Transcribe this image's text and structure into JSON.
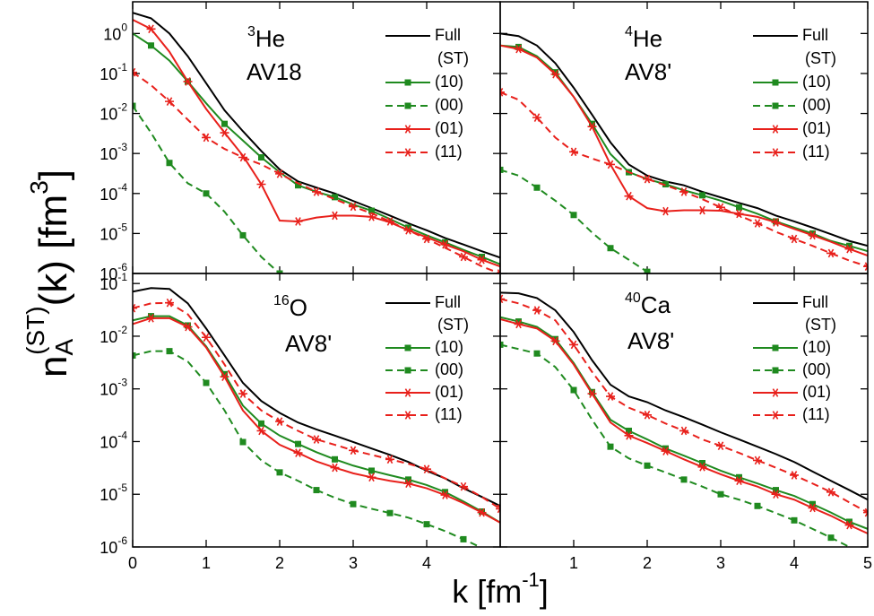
{
  "y_label": {
    "base": "n",
    "sub": "A",
    "sup": "(ST)",
    "rest": "(k) [fm",
    "power": "3",
    "end": "]"
  },
  "x_label": {
    "base": "k [fm",
    "power": "-1",
    "end": "]"
  },
  "chart_data": [
    {
      "type": "line",
      "annotation": {
        "mass": "3",
        "symbol": "He",
        "potential": "AV18"
      },
      "legend_title": "(ST)",
      "log_y": true,
      "x": [
        0,
        0.25,
        0.5,
        0.75,
        1,
        1.25,
        1.5,
        1.75,
        2,
        2.25,
        2.5,
        2.75,
        3,
        3.25,
        3.5,
        3.75,
        4,
        4.25,
        4.5,
        4.75,
        5
      ],
      "xlim": [
        0,
        5
      ],
      "ylim": [
        1e-06,
        6.2
      ],
      "xticks": [
        0,
        1,
        2,
        3,
        4
      ],
      "yticks": [
        {
          "value": 1,
          "label": "10",
          "power": "0"
        },
        {
          "value": 0.1,
          "label": "10",
          "power": "-1"
        },
        {
          "value": 0.01,
          "label": "10",
          "power": "-2"
        },
        {
          "value": 0.001,
          "label": "10",
          "power": "-3"
        },
        {
          "value": 0.0001,
          "label": "10",
          "power": "-4"
        },
        {
          "value": 1e-05,
          "label": "10",
          "power": "-5"
        },
        {
          "value": 1e-06,
          "label": "10",
          "power": "-6"
        }
      ],
      "series": [
        {
          "name": "Full",
          "color": "#000000",
          "dash": false,
          "marker": "none",
          "values": [
            3.3,
            2.4,
            1.0,
            0.27,
            0.057,
            0.012,
            0.0036,
            0.00115,
            0.0004,
            0.0002,
            0.00014,
            0.0001,
            6.5e-05,
            4.3e-05,
            2.8e-05,
            1.8e-05,
            1.2e-05,
            7.7e-06,
            5.3e-06,
            3.6e-06,
            2.5e-06
          ]
        },
        {
          "name": "(10)",
          "color": "#1f8a1f",
          "dash": false,
          "marker": "square",
          "values": [
            1.0,
            0.5,
            0.21,
            0.063,
            0.018,
            0.0055,
            0.0021,
            0.0008,
            0.00034,
            0.00016,
            0.00011,
            8.1e-05,
            5.3e-05,
            3.7e-05,
            2.3e-05,
            1.4e-05,
            9e-06,
            6e-06,
            3.9e-06,
            2.6e-06,
            1.7e-06
          ]
        },
        {
          "name": "(00)",
          "color": "#1f8a1f",
          "dash": true,
          "marker": "square",
          "values": [
            0.0155,
            0.0033,
            0.00058,
            0.00018,
            0.0001,
            3.5e-05,
            9e-06,
            2.6e-06,
            1e-06,
            3e-07,
            null,
            null,
            null,
            null,
            null,
            null,
            null,
            null,
            null,
            null,
            null
          ]
        },
        {
          "name": "(01)",
          "color": "#e8201b",
          "dash": false,
          "marker": "star",
          "values": [
            2.2,
            1.3,
            0.35,
            0.063,
            0.013,
            0.0033,
            0.00088,
            0.00017,
            2.1e-05,
            2e-05,
            2.5e-05,
            2.8e-05,
            2.8e-05,
            2.6e-05,
            1.9e-05,
            1.2e-05,
            8e-06,
            5.3e-06,
            3.6e-06,
            2.2e-06,
            1.5e-06
          ]
        },
        {
          "name": "(11)",
          "color": "#e8201b",
          "dash": true,
          "marker": "star",
          "values": [
            0.107,
            0.051,
            0.02,
            0.007,
            0.0025,
            0.0013,
            0.0008,
            0.00053,
            0.00031,
            0.00018,
            0.00011,
            7.2e-05,
            4.7e-05,
            3.2e-05,
            2e-05,
            1.2e-05,
            7.3e-06,
            4.4e-06,
            2.6e-06,
            1.5e-06,
            1e-06
          ]
        }
      ]
    },
    {
      "type": "line",
      "annotation": {
        "mass": "4",
        "symbol": "He",
        "potential": "AV8'"
      },
      "legend_title": "(ST)",
      "log_y": true,
      "x": [
        0,
        0.25,
        0.5,
        0.75,
        1,
        1.25,
        1.5,
        1.75,
        2,
        2.25,
        2.5,
        2.75,
        3,
        3.25,
        3.5,
        3.75,
        4,
        4.25,
        4.5,
        4.75,
        5
      ],
      "xlim": [
        0,
        5
      ],
      "ylim": [
        1e-06,
        6.2
      ],
      "xticks": [
        1,
        2,
        3,
        4,
        5
      ],
      "yticks": [
        {
          "value": 1,
          "label": "10",
          "power": "0"
        },
        {
          "value": 0.1,
          "label": "10",
          "power": "-1"
        },
        {
          "value": 0.01,
          "label": "10",
          "power": "-2"
        },
        {
          "value": 0.001,
          "label": "10",
          "power": "-3"
        },
        {
          "value": 0.0001,
          "label": "10",
          "power": "-4"
        },
        {
          "value": 1e-05,
          "label": "10",
          "power": "-5"
        },
        {
          "value": 1e-06,
          "label": "10",
          "power": "-6"
        }
      ],
      "series": [
        {
          "name": "Full",
          "color": "#000000",
          "dash": false,
          "marker": "none",
          "values": [
            1.0,
            0.86,
            0.5,
            0.18,
            0.044,
            0.0093,
            0.0019,
            0.00053,
            0.00028,
            0.0002,
            0.00016,
            0.00011,
            8e-05,
            5.8e-05,
            4.3e-05,
            2.8e-05,
            2e-05,
            1.4e-05,
            9.6e-06,
            6.5e-06,
            4.9e-06
          ]
        },
        {
          "name": "(10)",
          "color": "#1f8a1f",
          "dash": false,
          "marker": "square",
          "values": [
            0.5,
            0.46,
            0.27,
            0.107,
            0.026,
            0.0055,
            0.00097,
            0.00034,
            0.00023,
            0.00017,
            0.00012,
            9e-05,
            6.6e-05,
            4.5e-05,
            3.1e-05,
            2e-05,
            1.4e-05,
            1e-05,
            6.5e-06,
            4.9e-06,
            3.6e-06
          ]
        },
        {
          "name": "(00)",
          "color": "#1f8a1f",
          "dash": true,
          "marker": "square",
          "values": [
            0.00039,
            0.00028,
            0.00014,
            6.6e-05,
            2.9e-05,
            1.05e-05,
            4.3e-06,
            2.2e-06,
            1.1e-06,
            6e-07,
            null,
            null,
            null,
            null,
            null,
            null,
            null,
            null,
            null,
            null,
            null
          ]
        },
        {
          "name": "(01)",
          "color": "#e8201b",
          "dash": false,
          "marker": "star",
          "values": [
            0.5,
            0.41,
            0.25,
            0.096,
            0.026,
            0.0047,
            0.00053,
            8.6e-05,
            4.3e-05,
            3.6e-05,
            3.8e-05,
            3.8e-05,
            3.7e-05,
            3.1e-05,
            2.6e-05,
            1.9e-05,
            1.3e-05,
            9e-06,
            6.2e-06,
            4.1e-06,
            2.8e-06
          ]
        },
        {
          "name": "(11)",
          "color": "#e8201b",
          "dash": true,
          "marker": "star",
          "values": [
            0.034,
            0.022,
            0.0079,
            0.0025,
            0.0011,
            0.00075,
            0.00053,
            0.00034,
            0.00023,
            0.00016,
            0.00011,
            7.2e-05,
            4.5e-05,
            2.8e-05,
            1.8e-05,
            1.1e-05,
            7.3e-06,
            4.9e-06,
            3.2e-06,
            2.1e-06,
            1.5e-06
          ]
        }
      ]
    },
    {
      "type": "line",
      "annotation": {
        "mass": "16",
        "symbol": "O",
        "potential": "AV8'"
      },
      "legend_title": "(ST)",
      "log_y": true,
      "x": [
        0,
        0.25,
        0.5,
        0.75,
        1,
        1.25,
        1.5,
        1.75,
        2,
        2.25,
        2.5,
        2.75,
        3,
        3.25,
        3.5,
        3.75,
        4,
        4.25,
        4.5,
        4.75,
        5
      ],
      "xlim": [
        0,
        5
      ],
      "ylim": [
        1e-06,
        0.155
      ],
      "xticks": [
        0,
        1,
        2,
        3,
        4
      ],
      "yticks": [
        {
          "value": 0.1,
          "label": "10",
          "power": "-1"
        },
        {
          "value": 0.01,
          "label": "10",
          "power": "-2"
        },
        {
          "value": 0.001,
          "label": "10",
          "power": "-3"
        },
        {
          "value": 0.0001,
          "label": "10",
          "power": "-4"
        },
        {
          "value": 1e-05,
          "label": "10",
          "power": "-5"
        },
        {
          "value": 1e-06,
          "label": "10",
          "power": "-6"
        }
      ],
      "series": [
        {
          "name": "Full",
          "color": "#000000",
          "dash": false,
          "marker": "none",
          "values": [
            0.07,
            0.082,
            0.079,
            0.042,
            0.014,
            0.0043,
            0.0013,
            0.00059,
            0.00035,
            0.00023,
            0.00017,
            0.00013,
            9.8e-05,
            7.4e-05,
            5.6e-05,
            4.1e-05,
            2.8e-05,
            2e-05,
            1.3e-05,
            8.9e-06,
            6e-06
          ]
        },
        {
          "name": "(10)",
          "color": "#1f8a1f",
          "dash": false,
          "marker": "square",
          "values": [
            0.02,
            0.024,
            0.024,
            0.016,
            0.0064,
            0.0019,
            0.00048,
            0.00022,
            0.00013,
            9e-05,
            6.3e-05,
            4.6e-05,
            3.5e-05,
            2.8e-05,
            2.3e-05,
            1.9e-05,
            1.5e-05,
            1.1e-05,
            7.3e-06,
            4.7e-06,
            2.9e-06
          ]
        },
        {
          "name": "(00)",
          "color": "#1f8a1f",
          "dash": true,
          "marker": "square",
          "values": [
            0.0043,
            0.0052,
            0.0052,
            0.0033,
            0.0013,
            0.00039,
            9.8e-05,
            4.4e-05,
            2.6e-05,
            1.8e-05,
            1.2e-05,
            8.6e-06,
            6.5e-06,
            5.3e-06,
            4.4e-06,
            3.6e-06,
            2.7e-06,
            2e-06,
            1.4e-06,
            9.6e-07,
            6.7e-07
          ]
        },
        {
          "name": "(01)",
          "color": "#e8201b",
          "dash": false,
          "marker": "star",
          "values": [
            0.017,
            0.022,
            0.022,
            0.015,
            0.0061,
            0.0017,
            0.00039,
            0.00016,
            8.7e-05,
            6.1e-05,
            4.2e-05,
            3.2e-05,
            2.5e-05,
            2.1e-05,
            1.8e-05,
            1.6e-05,
            1.3e-05,
            9.7e-06,
            6.8e-06,
            4.5e-06,
            2.9e-06
          ]
        },
        {
          "name": "(11)",
          "color": "#e8201b",
          "dash": true,
          "marker": "star",
          "values": [
            0.034,
            0.042,
            0.043,
            0.026,
            0.0095,
            0.0029,
            0.00081,
            0.00039,
            0.00024,
            0.00016,
            0.00011,
            8.7e-05,
            6.8e-05,
            5.6e-05,
            4.6e-05,
            3.8e-05,
            3e-05,
            2e-05,
            1.4e-05,
            8.9e-06,
            5.3e-06
          ]
        }
      ]
    },
    {
      "type": "line",
      "annotation": {
        "mass": "40",
        "symbol": "Ca",
        "potential": "AV8'"
      },
      "legend_title": "(ST)",
      "log_y": true,
      "x": [
        0,
        0.25,
        0.5,
        0.75,
        1,
        1.25,
        1.5,
        1.75,
        2,
        2.25,
        2.5,
        2.75,
        3,
        3.25,
        3.5,
        3.75,
        4,
        4.25,
        4.5,
        4.75,
        5
      ],
      "xlim": [
        0,
        5
      ],
      "ylim": [
        1e-06,
        0.155
      ],
      "xticks": [
        1,
        2,
        3,
        4,
        5
      ],
      "yticks": [
        {
          "value": 0.1,
          "label": "10",
          "power": "-1"
        },
        {
          "value": 0.01,
          "label": "10",
          "power": "-2"
        },
        {
          "value": 0.001,
          "label": "10",
          "power": "-3"
        },
        {
          "value": 0.0001,
          "label": "10",
          "power": "-4"
        },
        {
          "value": 1e-05,
          "label": "10",
          "power": "-5"
        },
        {
          "value": 1e-06,
          "label": "10",
          "power": "-6"
        }
      ],
      "series": [
        {
          "name": "Full",
          "color": "#000000",
          "dash": false,
          "marker": "none",
          "values": [
            0.067,
            0.065,
            0.053,
            0.031,
            0.012,
            0.0035,
            0.0012,
            0.00072,
            0.00056,
            0.00039,
            0.00029,
            0.00021,
            0.00015,
            0.00011,
            8e-05,
            5.8e-05,
            4.1e-05,
            2.7e-05,
            1.8e-05,
            1.2e-05,
            7.9e-06
          ]
        },
        {
          "name": "(10)",
          "color": "#1f8a1f",
          "dash": false,
          "marker": "square",
          "values": [
            0.023,
            0.019,
            0.015,
            0.0088,
            0.0031,
            0.00087,
            0.00026,
            0.00016,
            0.00011,
            7.4e-05,
            5.4e-05,
            3.9e-05,
            2.8e-05,
            2.1e-05,
            1.6e-05,
            1.2e-05,
            9.3e-06,
            6.5e-06,
            4.5e-06,
            3e-06,
            2.2e-06
          ]
        },
        {
          "name": "(00)",
          "color": "#1f8a1f",
          "dash": true,
          "marker": "square",
          "values": [
            0.0069,
            0.0057,
            0.0047,
            0.0026,
            0.00095,
            0.00026,
            8e-05,
            4.8e-05,
            3.5e-05,
            2.6e-05,
            1.9e-05,
            1.4e-05,
            1e-05,
            7.9e-06,
            6e-06,
            4.4e-06,
            3.2e-06,
            2.2e-06,
            1.5e-06,
            1e-06,
            7e-07
          ]
        },
        {
          "name": "(01)",
          "color": "#e8201b",
          "dash": false,
          "marker": "star",
          "values": [
            0.021,
            0.017,
            0.014,
            0.0081,
            0.0029,
            0.00081,
            0.00023,
            0.00013,
            9.4e-05,
            6.6e-05,
            4.6e-05,
            3.3e-05,
            2.4e-05,
            1.8e-05,
            1.4e-05,
            1e-05,
            7.9e-06,
            5.5e-06,
            3.9e-06,
            2.6e-06,
            1.8e-06
          ]
        },
        {
          "name": "(11)",
          "color": "#e8201b",
          "dash": true,
          "marker": "star",
          "values": [
            0.051,
            0.042,
            0.031,
            0.02,
            0.0069,
            0.0021,
            0.00072,
            0.00044,
            0.00032,
            0.00022,
            0.00016,
            0.00011,
            8.3e-05,
            6.1e-05,
            4.4e-05,
            3.2e-05,
            2.3e-05,
            1.6e-05,
            1.1e-05,
            7e-06,
            4.5e-06
          ]
        }
      ]
    }
  ]
}
